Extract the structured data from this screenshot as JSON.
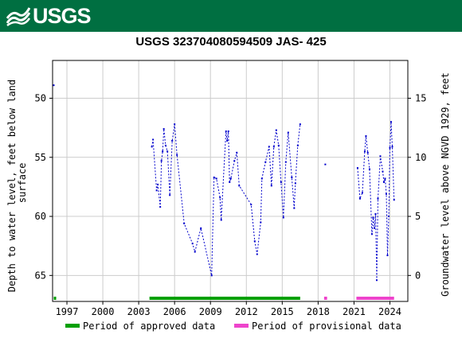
{
  "header": {
    "logo_text": "USGS",
    "banner_color": "#006f41"
  },
  "chart_data": {
    "type": "scatter",
    "title": "USGS 323704080594509 JAS- 425",
    "ylabel_left": "Depth to water level, feet below land surface",
    "ylabel_left_lines": [
      "Depth to water level, feet below land",
      "surface"
    ],
    "ylabel_right": "Groundwater level above NGVD 1929, feet",
    "x_ticks": [
      "1997",
      "2000",
      "2003",
      "2006",
      "2009",
      "2012",
      "2015",
      "2018",
      "2021",
      "2024"
    ],
    "y_ticks_left": [
      "50",
      "55",
      "60",
      "65"
    ],
    "y_ticks_right": [
      "15",
      "10",
      "5",
      "0"
    ],
    "xlim": [
      1995.8,
      2025.5
    ],
    "ylim_left": [
      46.8,
      67.2
    ],
    "y_right_offset": 65,
    "grid": true,
    "legend_position": "bottom",
    "legend": [
      {
        "label": "Period of approved data",
        "color": "#00a000"
      },
      {
        "label": "Period of provisional data",
        "color": "#ee44cc"
      }
    ],
    "series": [
      {
        "points": [
          [
            1995.9,
            48.9
          ]
        ]
      },
      {
        "points": [
          [
            2004.1,
            54.1
          ],
          [
            2004.2,
            53.5
          ],
          [
            2004.5,
            57.8
          ],
          [
            2004.6,
            57.3
          ],
          [
            2004.8,
            59.2
          ],
          [
            2004.9,
            55.3
          ],
          [
            2005.0,
            54.5
          ],
          [
            2005.1,
            52.6
          ],
          [
            2005.25,
            54.0
          ],
          [
            2005.4,
            54.5
          ],
          [
            2005.6,
            58.2
          ],
          [
            2005.8,
            53.6
          ],
          [
            2006.0,
            52.2
          ],
          [
            2006.2,
            54.8
          ],
          [
            2006.8,
            60.6
          ],
          [
            2007.5,
            62.3
          ],
          [
            2007.7,
            63.0
          ],
          [
            2008.2,
            61.0
          ],
          [
            2009.1,
            65.0
          ],
          [
            2009.3,
            56.7
          ],
          [
            2009.5,
            56.8
          ],
          [
            2009.8,
            58.4
          ],
          [
            2009.9,
            60.3
          ],
          [
            2010.3,
            52.8
          ],
          [
            2010.4,
            53.6
          ],
          [
            2010.5,
            52.8
          ],
          [
            2010.6,
            57.1
          ],
          [
            2010.7,
            56.8
          ],
          [
            2011.0,
            55.3
          ],
          [
            2011.2,
            54.6
          ],
          [
            2011.4,
            57.4
          ],
          [
            2012.4,
            59.0
          ],
          [
            2012.7,
            62.1
          ],
          [
            2012.9,
            63.2
          ],
          [
            2013.2,
            60.5
          ],
          [
            2013.3,
            56.8
          ],
          [
            2013.6,
            55.4
          ],
          [
            2013.9,
            54.1
          ],
          [
            2014.1,
            57.4
          ],
          [
            2014.3,
            54.1
          ],
          [
            2014.5,
            52.7
          ],
          [
            2014.7,
            54.0
          ],
          [
            2014.9,
            57.1
          ],
          [
            2015.1,
            60.1
          ],
          [
            2015.3,
            55.4
          ],
          [
            2015.5,
            52.9
          ],
          [
            2015.8,
            56.7
          ],
          [
            2016.0,
            59.3
          ],
          [
            2016.1,
            57.2
          ],
          [
            2016.3,
            54.0
          ],
          [
            2016.5,
            52.2
          ]
        ]
      },
      {
        "points": [
          [
            2018.6,
            55.6
          ]
        ]
      },
      {
        "points": [
          [
            2021.3,
            55.9
          ],
          [
            2021.5,
            58.5
          ],
          [
            2021.7,
            58.0
          ],
          [
            2021.9,
            54.5
          ],
          [
            2022.0,
            53.2
          ],
          [
            2022.15,
            54.6
          ],
          [
            2022.3,
            56.0
          ],
          [
            2022.5,
            61.5
          ],
          [
            2022.6,
            60.1
          ],
          [
            2022.7,
            61.0
          ],
          [
            2022.8,
            59.8
          ],
          [
            2022.9,
            65.4
          ],
          [
            2023.0,
            58.5
          ],
          [
            2023.2,
            54.9
          ],
          [
            2023.4,
            56.2
          ],
          [
            2023.5,
            57.1
          ],
          [
            2023.6,
            56.8
          ],
          [
            2023.7,
            58.1
          ],
          [
            2023.8,
            63.3
          ],
          [
            2023.9,
            60.0
          ],
          [
            2024.0,
            54.2
          ],
          [
            2024.1,
            52.0
          ],
          [
            2024.2,
            54.1
          ],
          [
            2024.35,
            58.6
          ]
        ]
      }
    ],
    "approved_periods": [
      [
        1995.9,
        1996.0
      ],
      [
        2003.9,
        2016.5
      ]
    ],
    "provisional_periods": [
      [
        2018.5,
        2018.75
      ],
      [
        2021.2,
        2024.35
      ]
    ]
  }
}
